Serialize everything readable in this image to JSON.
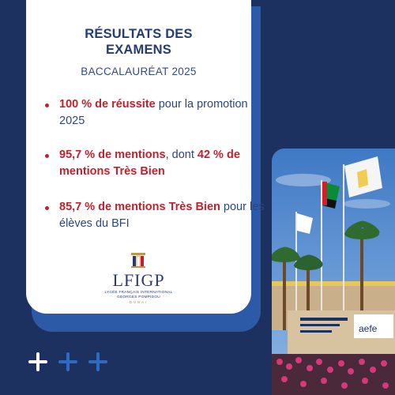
{
  "card": {
    "title_line1": "RÉSULTATS DES",
    "title_line2": "EXAMENS",
    "subtitle": "BACCALAURÉAT 2025",
    "bullets": [
      {
        "highlight": "100 % de réussite",
        "text": " pour la promotion 2025"
      },
      {
        "highlight": "95,7 % de mentions",
        "text": ", dont ",
        "highlight2": "42 % de mentions Très Bien"
      },
      {
        "highlight": "85,7 % de mentions Très Bien",
        "text": " pour les élèves du BFI"
      }
    ]
  },
  "logo": {
    "name": "LFIGP",
    "subline1": "LYCÉE FRANÇAIS INTERNATIONAL",
    "subline2": "GEORGES POMPIDOU",
    "city": "DUBAI"
  },
  "photo": {
    "sign_text": "aefe"
  },
  "colors": {
    "background": "#1d3160",
    "accent": "#c4202b",
    "card_shadow": "#2d5aa7"
  },
  "decorations": {
    "plus_icons": [
      "white",
      "blue",
      "blue"
    ]
  }
}
